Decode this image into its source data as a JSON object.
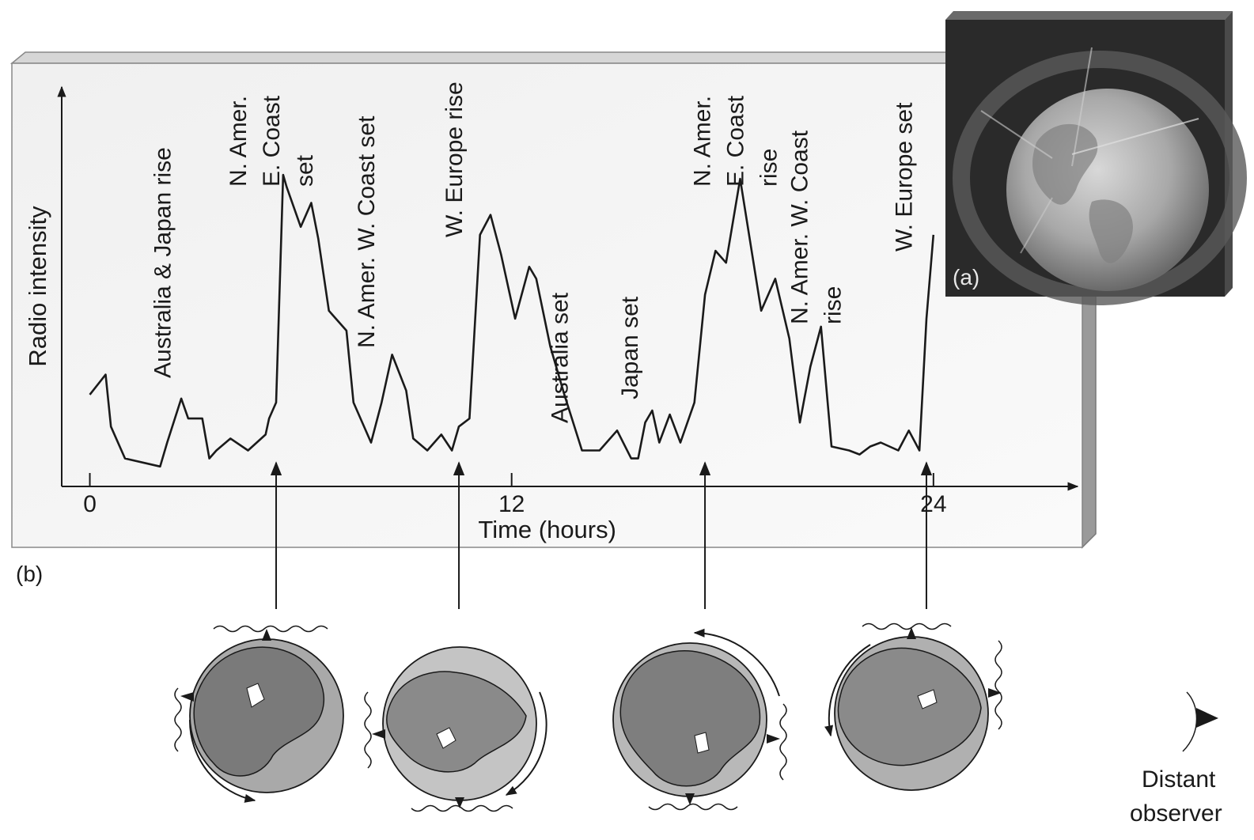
{
  "panel_b_label": "(b)",
  "panel_a_label": "(a)",
  "observer_label_line1": "Distant",
  "observer_label_line2": "observer",
  "chart_data": {
    "type": "line",
    "xlabel": "Time (hours)",
    "ylabel": "Radio intensity",
    "xlim": [
      -0.8,
      28.1
    ],
    "ylim": [
      0,
      1
    ],
    "x_ticks": [
      {
        "value": 0,
        "label": "0"
      },
      {
        "value": 12,
        "label": "12"
      },
      {
        "value": 24,
        "label": "24"
      }
    ],
    "grid": false,
    "series": [
      {
        "x": [
          0,
          0.45,
          0.6,
          1.0,
          2.0,
          2.2,
          2.6,
          2.8,
          3.2,
          3.4,
          3.6,
          4.0,
          4.5,
          5.0,
          5.1,
          5.3,
          5.5,
          5.6,
          6.0,
          6.3,
          6.5,
          6.8,
          6.9,
          7.3,
          7.5,
          8.0,
          8.3,
          8.6,
          9.0,
          9.2,
          9.6,
          10.0,
          10.3,
          10.5,
          10.8,
          11.1,
          11.4,
          11.7,
          12.1,
          12.5,
          12.7,
          13.1,
          13.5,
          14.0,
          14.3,
          14.5,
          15.0,
          15.4,
          15.6,
          15.8,
          16.0,
          16.2,
          16.5,
          16.8,
          17.2,
          17.5,
          17.8,
          18.1,
          18.5,
          19.1,
          19.5,
          19.9,
          20.2,
          20.5,
          20.8,
          21.1,
          21.6,
          21.9,
          22.2,
          22.5,
          23.0,
          23.3,
          23.6,
          23.8,
          24.0
        ],
        "y": [
          0.23,
          0.28,
          0.15,
          0.07,
          0.05,
          0.11,
          0.22,
          0.17,
          0.17,
          0.07,
          0.09,
          0.12,
          0.09,
          0.13,
          0.17,
          0.21,
          0.78,
          0.75,
          0.65,
          0.71,
          0.62,
          0.44,
          0.43,
          0.39,
          0.21,
          0.11,
          0.21,
          0.33,
          0.24,
          0.12,
          0.09,
          0.13,
          0.09,
          0.15,
          0.17,
          0.63,
          0.68,
          0.58,
          0.42,
          0.55,
          0.52,
          0.35,
          0.23,
          0.09,
          0.09,
          0.09,
          0.14,
          0.07,
          0.07,
          0.16,
          0.19,
          0.11,
          0.18,
          0.11,
          0.21,
          0.48,
          0.59,
          0.56,
          0.77,
          0.44,
          0.52,
          0.37,
          0.16,
          0.3,
          0.4,
          0.1,
          0.09,
          0.08,
          0.1,
          0.11,
          0.09,
          0.14,
          0.09,
          0.42,
          0.63
        ]
      }
    ],
    "annotations": [
      {
        "x": 2.2,
        "lines": [
          "Australia & Japan rise"
        ]
      },
      {
        "x": 5.3,
        "lines": [
          "N. Amer.",
          "E. Coast",
          "set"
        ]
      },
      {
        "x": 8.0,
        "lines": [
          "N. Amer. W. Coast set"
        ]
      },
      {
        "x": 10.5,
        "lines": [
          "W. Europe rise"
        ]
      },
      {
        "x": 13.5,
        "lines": [
          "Australia set"
        ]
      },
      {
        "x": 15.5,
        "lines": [
          "Japan set"
        ]
      },
      {
        "x": 18.5,
        "lines": [
          "N. Amer.",
          "E. Coast",
          "rise"
        ]
      },
      {
        "x": 20.8,
        "lines": [
          "N. Amer. W. Coast",
          "rise"
        ]
      },
      {
        "x": 23.3,
        "lines": [
          "W. Europe set"
        ]
      }
    ],
    "arrow_times": [
      5.3,
      10.5,
      17.5,
      23.8
    ]
  }
}
